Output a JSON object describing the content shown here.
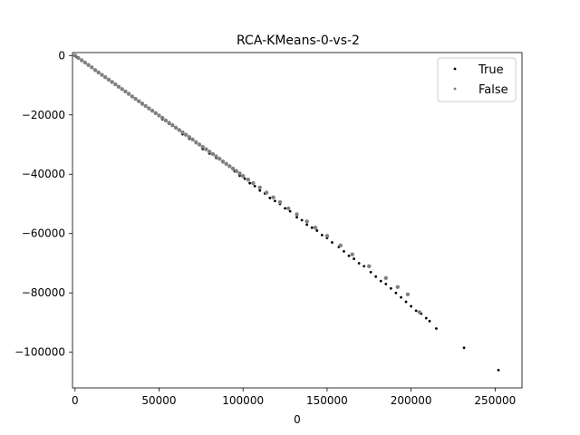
{
  "chart_data": {
    "type": "scatter",
    "title": "RCA-KMeans-0-vs-2",
    "xlabel": "0",
    "ylabel": "",
    "xlim": [
      -1500,
      266000
    ],
    "ylim": [
      -112000,
      1000
    ],
    "xticks": [
      0,
      50000,
      100000,
      150000,
      200000,
      250000
    ],
    "xtick_labels": [
      "0",
      "50000",
      "100000",
      "150000",
      "200000",
      "250000"
    ],
    "yticks": [
      0,
      -20000,
      -40000,
      -60000,
      -80000,
      -100000
    ],
    "ytick_labels": [
      "0",
      "−20000",
      "−40000",
      "−60000",
      "−80000",
      "−100000"
    ],
    "grid": false,
    "legend_position": "top-right",
    "series": [
      {
        "name": "True",
        "color": "#000000",
        "points": [
          [
            252000,
            -106000
          ],
          [
            231500,
            -98500
          ],
          [
            215000,
            -92000
          ],
          [
            211000,
            -89500
          ],
          [
            209000,
            -88500
          ],
          [
            206000,
            -87000
          ],
          [
            203000,
            -86000
          ],
          [
            200000,
            -84500
          ],
          [
            197000,
            -83000
          ],
          [
            194000,
            -81500
          ],
          [
            191000,
            -80000
          ],
          [
            188000,
            -78500
          ],
          [
            185000,
            -77000
          ],
          [
            182000,
            -76000
          ],
          [
            179000,
            -74500
          ],
          [
            176000,
            -73000
          ],
          [
            172000,
            -71000
          ],
          [
            169000,
            -70000
          ],
          [
            166000,
            -68500
          ],
          [
            163000,
            -67500
          ],
          [
            160000,
            -66000
          ],
          [
            157000,
            -64500
          ],
          [
            153000,
            -63000
          ],
          [
            150000,
            -61500
          ],
          [
            147000,
            -60500
          ],
          [
            144000,
            -59000
          ],
          [
            141000,
            -58000
          ],
          [
            138000,
            -57000
          ],
          [
            135000,
            -55500
          ],
          [
            132000,
            -54500
          ],
          [
            128000,
            -52500
          ],
          [
            125000,
            -51500
          ],
          [
            122000,
            -50000
          ],
          [
            119000,
            -49000
          ],
          [
            116000,
            -48000
          ],
          [
            113000,
            -46500
          ],
          [
            110000,
            -45500
          ],
          [
            107000,
            -44000
          ],
          [
            104000,
            -43000
          ],
          [
            101000,
            -41500
          ],
          [
            98000,
            -40500
          ],
          [
            95000,
            -39000
          ],
          [
            92000,
            -37500
          ],
          [
            88000,
            -36000
          ],
          [
            84000,
            -34500
          ],
          [
            80000,
            -33000
          ],
          [
            76000,
            -31500
          ],
          [
            72000,
            -29500
          ],
          [
            68000,
            -28000
          ],
          [
            64000,
            -26500
          ],
          [
            60000,
            -24500
          ],
          [
            56000,
            -23000
          ],
          [
            52000,
            -21500
          ],
          [
            48000,
            -19500
          ],
          [
            44000,
            -18000
          ],
          [
            40000,
            -16500
          ],
          [
            36000,
            -14500
          ],
          [
            32000,
            -13000
          ],
          [
            28000,
            -11500
          ],
          [
            24000,
            -9500
          ],
          [
            20000,
            -8000
          ],
          [
            16000,
            -6500
          ],
          [
            12000,
            -5000
          ],
          [
            8000,
            -3000
          ],
          [
            4000,
            -1500
          ],
          [
            1000,
            -500
          ]
        ]
      },
      {
        "name": "False",
        "color": "#808080",
        "points": [
          [
            0,
            0
          ],
          [
            2000,
            -800
          ],
          [
            4000,
            -1600
          ],
          [
            6000,
            -2400
          ],
          [
            8000,
            -3200
          ],
          [
            10000,
            -4000
          ],
          [
            12000,
            -4900
          ],
          [
            14000,
            -5700
          ],
          [
            16000,
            -6500
          ],
          [
            18000,
            -7300
          ],
          [
            20000,
            -8100
          ],
          [
            22000,
            -8900
          ],
          [
            24000,
            -9700
          ],
          [
            26000,
            -10500
          ],
          [
            28000,
            -11300
          ],
          [
            30000,
            -12100
          ],
          [
            32000,
            -12900
          ],
          [
            34000,
            -13800
          ],
          [
            36000,
            -14600
          ],
          [
            38000,
            -15400
          ],
          [
            40000,
            -16200
          ],
          [
            42000,
            -17000
          ],
          [
            44000,
            -17800
          ],
          [
            46000,
            -18600
          ],
          [
            48000,
            -19400
          ],
          [
            50000,
            -20200
          ],
          [
            52000,
            -21000
          ],
          [
            54000,
            -21900
          ],
          [
            56000,
            -22700
          ],
          [
            58000,
            -23500
          ],
          [
            60000,
            -24300
          ],
          [
            62000,
            -25100
          ],
          [
            64000,
            -25900
          ],
          [
            66000,
            -26700
          ],
          [
            68000,
            -27500
          ],
          [
            70000,
            -28300
          ],
          [
            72000,
            -29200
          ],
          [
            74000,
            -30000
          ],
          [
            76000,
            -30800
          ],
          [
            78000,
            -31600
          ],
          [
            80000,
            -32400
          ],
          [
            82000,
            -33200
          ],
          [
            84000,
            -34000
          ],
          [
            86000,
            -34800
          ],
          [
            88000,
            -35700
          ],
          [
            90000,
            -36500
          ],
          [
            92000,
            -37300
          ],
          [
            94000,
            -38100
          ],
          [
            96000,
            -38900
          ],
          [
            98000,
            -39700
          ],
          [
            100000,
            -40600
          ],
          [
            103000,
            -41800
          ],
          [
            106000,
            -43000
          ],
          [
            110000,
            -44500
          ],
          [
            114000,
            -46200
          ],
          [
            118000,
            -47800
          ],
          [
            122000,
            -49400
          ],
          [
            127000,
            -51500
          ],
          [
            132000,
            -53500
          ],
          [
            138000,
            -55900
          ],
          [
            143000,
            -58000
          ],
          [
            150000,
            -60800
          ],
          [
            158000,
            -64000
          ],
          [
            165000,
            -67000
          ],
          [
            175000,
            -71000
          ],
          [
            185000,
            -75000
          ],
          [
            192000,
            -78000
          ],
          [
            198000,
            -80500
          ],
          [
            205000,
            -86500
          ]
        ]
      }
    ]
  }
}
